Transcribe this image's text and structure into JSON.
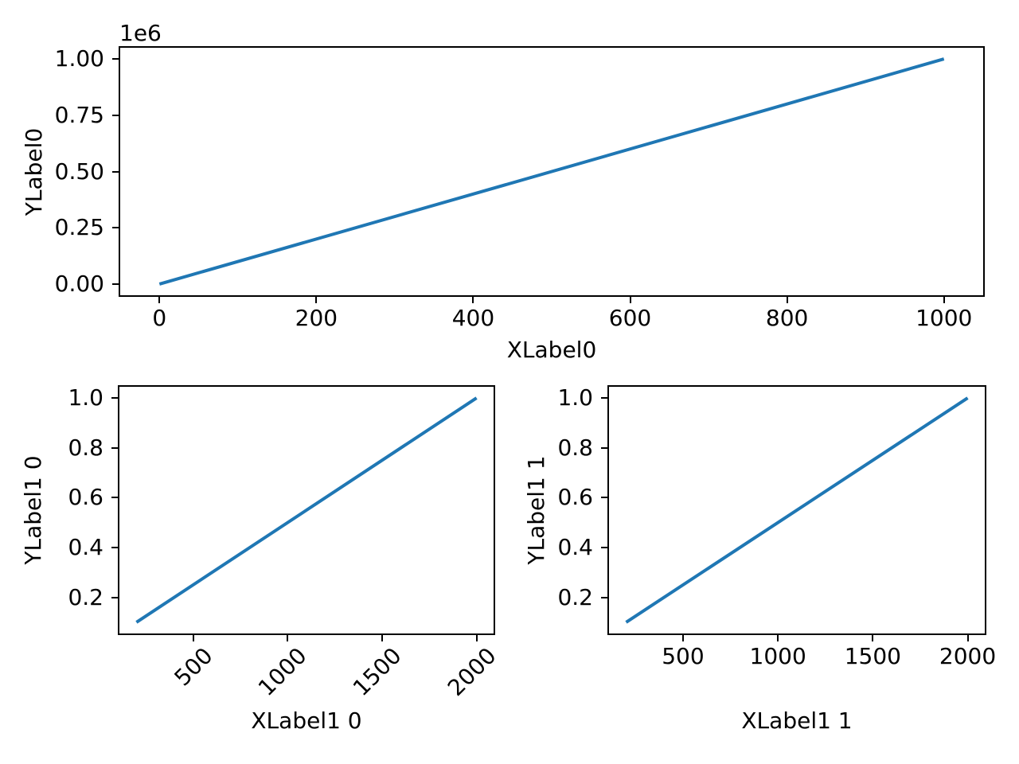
{
  "figure": {
    "background_color": "#ffffff",
    "spine_color": "#000000",
    "text_color": "#000000"
  },
  "chart_data": [
    {
      "type": "line",
      "title": "",
      "xlabel": "XLabel0",
      "ylabel": "YLabel0",
      "y_offset_text": "1e6",
      "line_color": "#1f77b4",
      "x": [
        0,
        1000
      ],
      "y": [
        0,
        1000000
      ],
      "xlim": [
        -50,
        1050
      ],
      "ylim": [
        -50000,
        1050000
      ],
      "grid": false,
      "legend": null,
      "xtick_rotation": 0,
      "xticks": [
        {
          "v": 0,
          "label": "0"
        },
        {
          "v": 200,
          "label": "200"
        },
        {
          "v": 400,
          "label": "400"
        },
        {
          "v": 600,
          "label": "600"
        },
        {
          "v": 800,
          "label": "800"
        },
        {
          "v": 1000,
          "label": "1000"
        }
      ],
      "yticks": [
        {
          "v": 0,
          "label": "0.00"
        },
        {
          "v": 250000,
          "label": "0.25"
        },
        {
          "v": 500000,
          "label": "0.50"
        },
        {
          "v": 750000,
          "label": "0.75"
        },
        {
          "v": 1000000,
          "label": "1.00"
        }
      ]
    },
    {
      "type": "line",
      "title": "",
      "xlabel": "XLabel1 0",
      "ylabel": "YLabel1 0",
      "y_offset_text": "",
      "line_color": "#1f77b4",
      "x": [
        200,
        2000
      ],
      "y": [
        0.1,
        1.0
      ],
      "xlim": [
        110,
        2090
      ],
      "ylim": [
        0.055,
        1.045
      ],
      "grid": false,
      "legend": null,
      "xtick_rotation": 45,
      "xticks": [
        {
          "v": 500,
          "label": "500"
        },
        {
          "v": 1000,
          "label": "1000"
        },
        {
          "v": 1500,
          "label": "1500"
        },
        {
          "v": 2000,
          "label": "2000"
        }
      ],
      "yticks": [
        {
          "v": 0.2,
          "label": "0.2"
        },
        {
          "v": 0.4,
          "label": "0.4"
        },
        {
          "v": 0.6,
          "label": "0.6"
        },
        {
          "v": 0.8,
          "label": "0.8"
        },
        {
          "v": 1.0,
          "label": "1.0"
        }
      ]
    },
    {
      "type": "line",
      "title": "",
      "xlabel": "XLabel1 1",
      "ylabel": "YLabel1 1",
      "y_offset_text": "",
      "line_color": "#1f77b4",
      "x": [
        200,
        2000
      ],
      "y": [
        0.1,
        1.0
      ],
      "xlim": [
        110,
        2090
      ],
      "ylim": [
        0.055,
        1.045
      ],
      "grid": false,
      "legend": null,
      "xtick_rotation": 0,
      "xticks": [
        {
          "v": 500,
          "label": "500"
        },
        {
          "v": 1000,
          "label": "1000"
        },
        {
          "v": 1500,
          "label": "1500"
        },
        {
          "v": 2000,
          "label": "2000"
        }
      ],
      "yticks": [
        {
          "v": 0.2,
          "label": "0.2"
        },
        {
          "v": 0.4,
          "label": "0.4"
        },
        {
          "v": 0.6,
          "label": "0.6"
        },
        {
          "v": 0.8,
          "label": "0.8"
        },
        {
          "v": 1.0,
          "label": "1.0"
        }
      ]
    }
  ]
}
